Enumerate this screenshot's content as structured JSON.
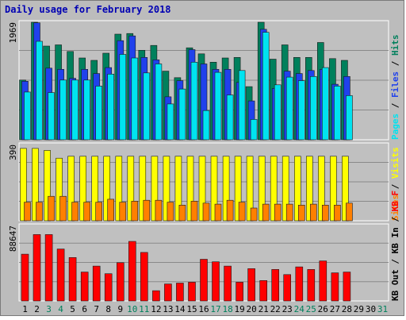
{
  "chart_data": {
    "type": "bar",
    "title": "Daily usage for February 2018",
    "days": [
      "1",
      "2",
      "3",
      "4",
      "5",
      "6",
      "7",
      "8",
      "9",
      "10",
      "11",
      "12",
      "13",
      "14",
      "15",
      "16",
      "17",
      "18",
      "19",
      "20",
      "21",
      "22",
      "23",
      "24",
      "25",
      "26",
      "27",
      "28",
      "29",
      "30",
      "31"
    ],
    "weekend_days": [
      "3",
      "4",
      "10",
      "11",
      "17",
      "18",
      "24",
      "25",
      "31"
    ],
    "panels": [
      {
        "id": "hits",
        "ymax_label": "1969",
        "ymax": 1969,
        "legend": [
          "Hits",
          "Files",
          "Pages"
        ],
        "series": [
          {
            "name": "Hits",
            "color": "#00805c",
            "values": [
              1000,
              1980,
              1570,
              1590,
              1480,
              1370,
              1330,
              1450,
              1770,
              1780,
              1500,
              1580,
              1150,
              1040,
              1540,
              1440,
              1300,
              1370,
              1380,
              890,
              1980,
              1350,
              1590,
              1380,
              1380,
              1630,
              1360,
              1330
            ]
          },
          {
            "name": "Files",
            "color": "#2041ec",
            "values": [
              980,
              1960,
              1200,
              1180,
              1030,
              1180,
              1110,
              1210,
              1660,
              1740,
              1380,
              1340,
              720,
              990,
              1510,
              1270,
              1180,
              1180,
              960,
              650,
              1850,
              860,
              1150,
              1110,
              1160,
              1180,
              930,
              1060
            ]
          },
          {
            "name": "Pages",
            "color": "#00e3f0",
            "values": [
              800,
              1650,
              790,
              1000,
              1000,
              1000,
              900,
              1100,
              1430,
              1370,
              1120,
              1270,
              600,
              850,
              1300,
              490,
              1130,
              750,
              1160,
              340,
              1800,
              920,
              1050,
              990,
              1060,
              1210,
              900,
              740
            ]
          }
        ]
      },
      {
        "id": "visits",
        "ymax_label": "390",
        "ymax": 390,
        "legend": [
          "Visits",
          "Sites"
        ],
        "series": [
          {
            "name": "Visits",
            "color": "#ffff00",
            "values": [
              370,
              370,
              360,
              320,
              330,
              330,
              330,
              330,
              330,
              330,
              330,
              330,
              330,
              330,
              330,
              330,
              330,
              330,
              330,
              330,
              330,
              330,
              330,
              330,
              330,
              330,
              330,
              330
            ]
          },
          {
            "name": "Sites",
            "color": "#ff8000",
            "values": [
              95,
              95,
              125,
              125,
              95,
              95,
              95,
              110,
              95,
              100,
              105,
              105,
              95,
              80,
              100,
              90,
              85,
              105,
              95,
              65,
              85,
              85,
              85,
              80,
              85,
              80,
              80,
              90
            ]
          }
        ]
      },
      {
        "id": "kbytes",
        "ymax_label": "88647",
        "ymax": 88647,
        "legend": [
          "KB F",
          "KB In",
          "KB Out"
        ],
        "series": [
          {
            "name": "KB F",
            "color": "#ff0000",
            "values": [
              55000,
              78000,
              78000,
              61000,
              51000,
              34000,
              41000,
              32000,
              45000,
              70000,
              57000,
              12000,
              20000,
              21000,
              22000,
              49000,
              46000,
              41000,
              22000,
              38000,
              24000,
              37000,
              31000,
              40000,
              37000,
              47000,
              33000,
              34000
            ]
          }
        ]
      }
    ]
  }
}
